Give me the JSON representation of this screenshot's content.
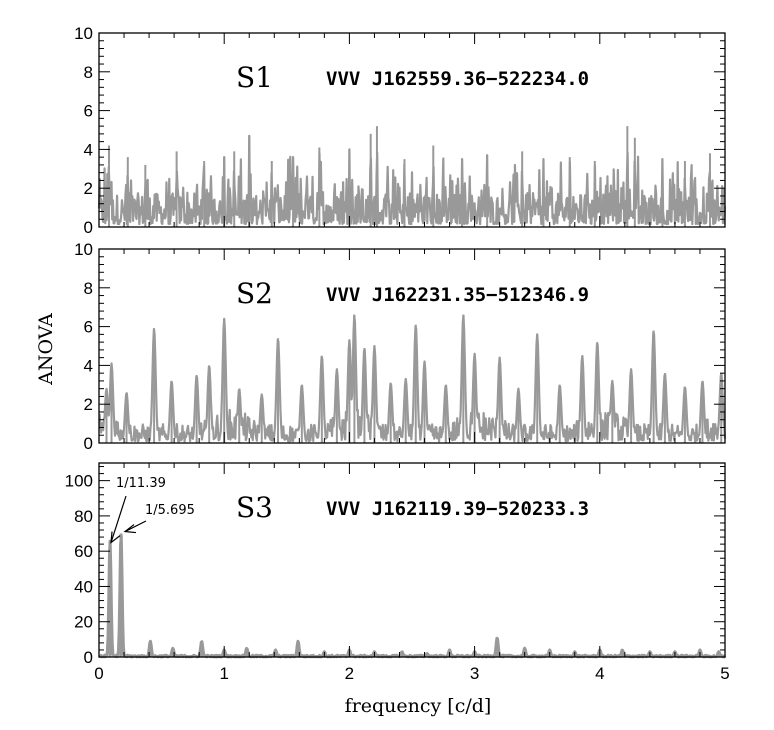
{
  "chart_data": [
    {
      "type": "line",
      "panel_label": "S1",
      "star_id": "VVV J162559.36−522234.0",
      "ylim": [
        0,
        10
      ],
      "yticks": [
        0,
        2,
        4,
        6,
        8,
        10
      ],
      "xlim": [
        0,
        5
      ],
      "series_color": "#999999",
      "noise_level": 1.0,
      "peaks": [
        {
          "x": 0.08,
          "y": 4.2
        },
        {
          "x": 0.23,
          "y": 3.6
        },
        {
          "x": 0.37,
          "y": 3.2
        },
        {
          "x": 0.62,
          "y": 3.9
        },
        {
          "x": 0.84,
          "y": 3.4
        },
        {
          "x": 1.0,
          "y": 3.6
        },
        {
          "x": 1.08,
          "y": 3.9
        },
        {
          "x": 1.2,
          "y": 4.7
        },
        {
          "x": 1.38,
          "y": 3.4
        },
        {
          "x": 1.55,
          "y": 3.6
        },
        {
          "x": 1.76,
          "y": 4.1
        },
        {
          "x": 2.0,
          "y": 4.0
        },
        {
          "x": 2.17,
          "y": 4.8
        },
        {
          "x": 2.22,
          "y": 5.2
        },
        {
          "x": 2.44,
          "y": 3.5
        },
        {
          "x": 2.67,
          "y": 4.2
        },
        {
          "x": 2.9,
          "y": 3.5
        },
        {
          "x": 3.1,
          "y": 3.7
        },
        {
          "x": 3.38,
          "y": 3.9
        },
        {
          "x": 3.55,
          "y": 3.5
        },
        {
          "x": 3.76,
          "y": 3.6
        },
        {
          "x": 3.96,
          "y": 3.4
        },
        {
          "x": 4.22,
          "y": 5.2
        },
        {
          "x": 4.28,
          "y": 4.6
        },
        {
          "x": 4.5,
          "y": 3.5
        },
        {
          "x": 4.68,
          "y": 3.4
        },
        {
          "x": 4.88,
          "y": 3.8
        }
      ]
    },
    {
      "type": "line",
      "panel_label": "S2",
      "star_id": "VVV J162231.35−512346.9",
      "ylim": [
        0,
        10
      ],
      "yticks": [
        0,
        2,
        4,
        6,
        8,
        10
      ],
      "xlim": [
        0,
        5
      ],
      "series_color": "#999999",
      "noise_level": 0.8,
      "peaks": [
        {
          "x": 0.06,
          "y": 2.8
        },
        {
          "x": 0.1,
          "y": 4.1
        },
        {
          "x": 0.22,
          "y": 2.6
        },
        {
          "x": 0.44,
          "y": 5.9
        },
        {
          "x": 0.58,
          "y": 3.2
        },
        {
          "x": 0.78,
          "y": 3.5
        },
        {
          "x": 0.88,
          "y": 4.0
        },
        {
          "x": 1.0,
          "y": 6.4
        },
        {
          "x": 1.12,
          "y": 2.8
        },
        {
          "x": 1.3,
          "y": 2.5
        },
        {
          "x": 1.43,
          "y": 5.4
        },
        {
          "x": 1.62,
          "y": 3.0
        },
        {
          "x": 1.78,
          "y": 4.5
        },
        {
          "x": 1.9,
          "y": 3.8
        },
        {
          "x": 2.0,
          "y": 5.3
        },
        {
          "x": 2.04,
          "y": 6.6
        },
        {
          "x": 2.12,
          "y": 4.9
        },
        {
          "x": 2.2,
          "y": 5.0
        },
        {
          "x": 2.33,
          "y": 3.1
        },
        {
          "x": 2.45,
          "y": 3.3
        },
        {
          "x": 2.53,
          "y": 6.1
        },
        {
          "x": 2.6,
          "y": 4.2
        },
        {
          "x": 2.77,
          "y": 3.0
        },
        {
          "x": 2.91,
          "y": 6.6
        },
        {
          "x": 3.0,
          "y": 4.6
        },
        {
          "x": 3.2,
          "y": 4.4
        },
        {
          "x": 3.35,
          "y": 2.8
        },
        {
          "x": 3.5,
          "y": 5.6
        },
        {
          "x": 3.68,
          "y": 3.0
        },
        {
          "x": 3.86,
          "y": 4.5
        },
        {
          "x": 3.98,
          "y": 5.2
        },
        {
          "x": 4.1,
          "y": 3.2
        },
        {
          "x": 4.25,
          "y": 3.8
        },
        {
          "x": 4.43,
          "y": 5.8
        },
        {
          "x": 4.52,
          "y": 3.6
        },
        {
          "x": 4.68,
          "y": 2.9
        },
        {
          "x": 4.82,
          "y": 3.2
        },
        {
          "x": 4.97,
          "y": 3.6
        }
      ]
    },
    {
      "type": "line",
      "panel_label": "S3",
      "star_id": "VVV J162119.39−520233.3",
      "ylim": [
        0,
        110
      ],
      "yticks": [
        0,
        20,
        40,
        60,
        80,
        100
      ],
      "xlim": [
        0,
        5
      ],
      "xticks": [
        0,
        1,
        2,
        3,
        4,
        5
      ],
      "series_color": "#999999",
      "noise_level": 0.6,
      "peaks": [
        {
          "x": 0.088,
          "y": 66
        },
        {
          "x": 0.176,
          "y": 70
        },
        {
          "x": 0.41,
          "y": 9
        },
        {
          "x": 0.59,
          "y": 5
        },
        {
          "x": 0.82,
          "y": 9
        },
        {
          "x": 1.0,
          "y": 4
        },
        {
          "x": 1.18,
          "y": 5
        },
        {
          "x": 1.41,
          "y": 4
        },
        {
          "x": 1.59,
          "y": 9
        },
        {
          "x": 1.8,
          "y": 3
        },
        {
          "x": 2.0,
          "y": 4
        },
        {
          "x": 2.2,
          "y": 3
        },
        {
          "x": 2.42,
          "y": 3
        },
        {
          "x": 2.62,
          "y": 2
        },
        {
          "x": 2.8,
          "y": 4
        },
        {
          "x": 3.0,
          "y": 3
        },
        {
          "x": 3.18,
          "y": 11
        },
        {
          "x": 3.4,
          "y": 5
        },
        {
          "x": 3.6,
          "y": 4
        },
        {
          "x": 3.8,
          "y": 3
        },
        {
          "x": 4.0,
          "y": 4
        },
        {
          "x": 4.18,
          "y": 4
        },
        {
          "x": 4.4,
          "y": 3
        },
        {
          "x": 4.6,
          "y": 3
        },
        {
          "x": 4.8,
          "y": 4
        },
        {
          "x": 4.95,
          "y": 3
        }
      ],
      "annotations": [
        {
          "text": "1/11.39",
          "x": 0.088,
          "y": 66
        },
        {
          "text": "1/5.695",
          "x": 0.176,
          "y": 70
        }
      ]
    }
  ],
  "xlabel": "frequency [c/d]",
  "ylabel": "ANOVA"
}
